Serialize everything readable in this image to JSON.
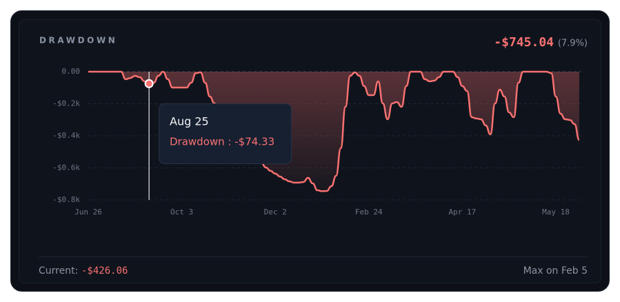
{
  "header": {
    "title": "DRAWDOWN",
    "value": "-$745.04",
    "percent": "(7.9%)"
  },
  "footer": {
    "current_label": "Current:",
    "current_value": "-$426.06",
    "max_label": "Max on Feb 5"
  },
  "chart_data": {
    "type": "area",
    "categories": [
      "Jun 26",
      null,
      null,
      null,
      null,
      null,
      null,
      null,
      null,
      null,
      null,
      null,
      null,
      null,
      null,
      null,
      null,
      null,
      null,
      null,
      "Oct 3",
      null,
      null,
      null,
      null,
      null,
      null,
      null,
      null,
      null,
      null,
      null,
      null,
      null,
      null,
      null,
      null,
      null,
      null,
      null,
      "Dec 2",
      null,
      null,
      null,
      null,
      null,
      null,
      null,
      null,
      null,
      null,
      null,
      null,
      null,
      null,
      null,
      null,
      null,
      null,
      null,
      "Feb 24",
      null,
      null,
      null,
      null,
      null,
      null,
      null,
      null,
      null,
      null,
      null,
      null,
      null,
      null,
      null,
      null,
      null,
      null,
      null,
      "Apr 17",
      null,
      null,
      null,
      null,
      null,
      null,
      null,
      null,
      null,
      null,
      null,
      null,
      null,
      null,
      null,
      null,
      null,
      null,
      null,
      "May 18",
      null,
      null,
      null,
      null,
      null
    ],
    "series": [
      {
        "name": "Drawdown",
        "color": "#f87171",
        "values": [
          0,
          0,
          0,
          0,
          0,
          0,
          0,
          0,
          -47,
          -39,
          -26,
          -34,
          -60,
          -74.33,
          -69,
          -26,
          0,
          -47,
          -99,
          -99,
          -99,
          -99,
          -69,
          -9,
          -4,
          -69,
          -155,
          -198,
          -249,
          -292,
          -327,
          -361,
          -391,
          -434,
          -464,
          -499,
          -533,
          -568,
          -598,
          -619,
          -636,
          -654,
          -671,
          -684,
          -692,
          -692,
          -688,
          -662,
          -697,
          -740,
          -745.04,
          -744,
          -714,
          -649,
          -477,
          -219,
          -26,
          -5,
          -26,
          -90,
          -146,
          -146,
          -60,
          -198,
          -297,
          -198,
          -189,
          -219,
          -90,
          0,
          0,
          0,
          -47,
          -60,
          -56,
          -34,
          0,
          0,
          0,
          -34,
          -90,
          -120,
          -284,
          -292,
          -297,
          -335,
          -391,
          -198,
          -112,
          -155,
          -254,
          -284,
          -69,
          0,
          0,
          0,
          0,
          0,
          0,
          -9,
          -155,
          -262,
          -297,
          -301,
          -327,
          -426.06
        ]
      }
    ],
    "ylim": [
      -800,
      0
    ],
    "yticks": [
      {
        "value": 0,
        "label": "0.00"
      },
      {
        "value": -200,
        "label": "-$0.2k"
      },
      {
        "value": -400,
        "label": "-$0.4k"
      },
      {
        "value": -600,
        "label": "-$0.6k"
      },
      {
        "value": -800,
        "label": "-$0.8k"
      }
    ],
    "grid": true,
    "tooltip": {
      "index": 13,
      "label": "Aug 25",
      "text": "Drawdown : -$74.33"
    }
  }
}
